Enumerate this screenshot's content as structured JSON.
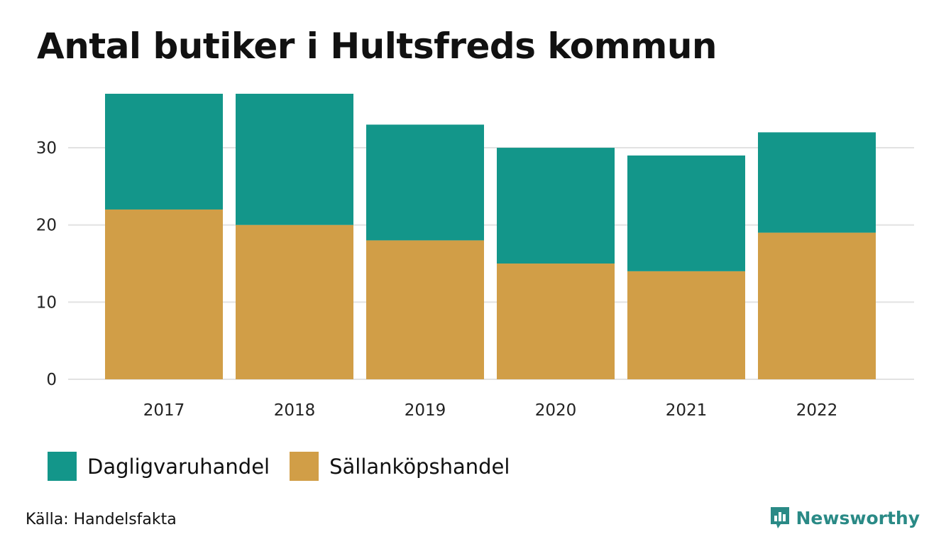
{
  "title": "Antal butiker i Hultsfreds kommun",
  "source": "Källa: Handelsfakta",
  "brand": {
    "name": "Newsworthy",
    "icon": "newsworthy-logo-icon",
    "color": "#2a8a86"
  },
  "chart_data": {
    "type": "bar",
    "stacked": true,
    "title": "Antal butiker i Hultsfreds kommun",
    "xlabel": "",
    "ylabel": "",
    "categories": [
      "2017",
      "2018",
      "2019",
      "2020",
      "2021",
      "2022"
    ],
    "series": [
      {
        "name": "Sällanköpshandel",
        "color": "#d19e47",
        "values": [
          22,
          20,
          18,
          15,
          14,
          19
        ]
      },
      {
        "name": "Dagligvaruhandel",
        "color": "#13968a",
        "values": [
          15,
          17,
          15,
          15,
          15,
          13
        ]
      }
    ],
    "legend_order": [
      "Dagligvaruhandel",
      "Sällanköpshandel"
    ],
    "ylim": [
      0,
      37
    ],
    "yticks": [
      "0",
      "10",
      "20",
      "30"
    ],
    "grid": true,
    "legend_position": "bottom-left"
  }
}
